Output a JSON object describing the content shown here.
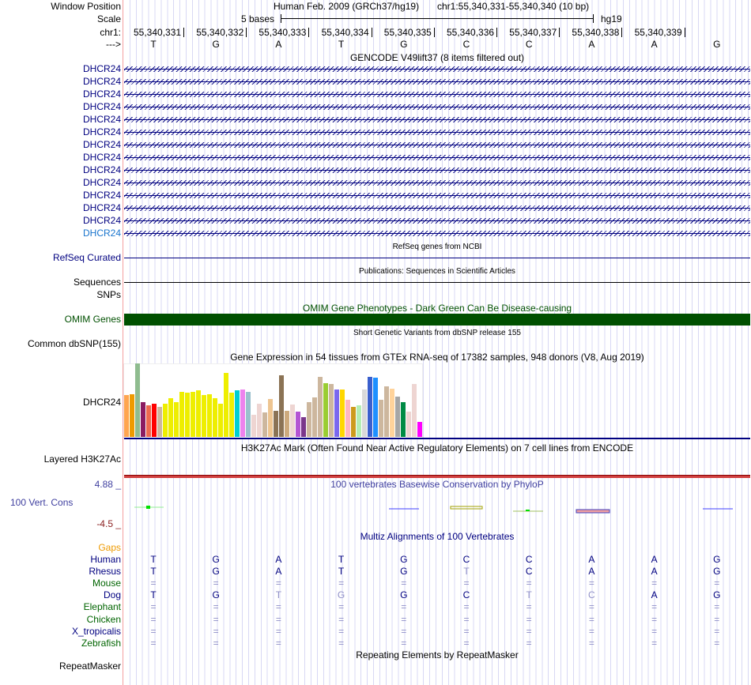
{
  "header": {
    "window_position_label": "Window Position",
    "scale_label": "Scale",
    "chrom_label": "chr1:",
    "strand_label": "--->",
    "assembly": "Human Feb. 2009 (GRCh37/hg19)",
    "position": "chr1:55,340,331-55,340,340 (10 bp)",
    "scale_text": "5 bases",
    "scale_db": "hg19",
    "coords": [
      "55,340,331",
      "55,340,332",
      "55,340,333",
      "55,340,334",
      "55,340,335",
      "55,340,336",
      "55,340,337",
      "55,340,338",
      "55,340,339"
    ],
    "bases": [
      "T",
      "G",
      "A",
      "T",
      "G",
      "C",
      "C",
      "A",
      "A",
      "G"
    ]
  },
  "gencode": {
    "title": "GENCODE V49lift37 (8 items filtered out)",
    "genes": [
      "DHCR24",
      "DHCR24",
      "DHCR24",
      "DHCR24",
      "DHCR24",
      "DHCR24",
      "DHCR24",
      "DHCR24",
      "DHCR24",
      "DHCR24",
      "DHCR24",
      "DHCR24",
      "DHCR24",
      "DHCR24"
    ]
  },
  "refseq": {
    "title": "RefSeq genes from NCBI",
    "label": "RefSeq Curated"
  },
  "pubs": {
    "title": "Publications: Sequences in Scientific Articles",
    "label": "Sequences"
  },
  "snps": {
    "label": "SNPs"
  },
  "omim": {
    "title": "OMIM Gene Phenotypes - Dark Green Can Be Disease-causing",
    "label": "OMIM Genes",
    "color": "#005000"
  },
  "dbsnp": {
    "title": "Short Genetic Variants from dbSNP release 155",
    "label": "Common dbSNP(155)"
  },
  "gtex": {
    "title": "Gene Expression in 54 tissues from GTEx RNA-seq of 17382 samples, 948 donors (V8, Aug 2019)",
    "label": "DHCR24",
    "values": [
      0.57,
      0.58,
      1.0,
      0.47,
      0.43,
      0.45,
      0.41,
      0.45,
      0.53,
      0.47,
      0.61,
      0.6,
      0.61,
      0.63,
      0.57,
      0.58,
      0.53,
      0.45,
      0.87,
      0.6,
      0.63,
      0.64,
      0.61,
      0.3,
      0.45,
      0.33,
      0.52,
      0.36,
      0.84,
      0.35,
      0.44,
      0.34,
      0.27,
      0.47,
      0.54,
      0.82,
      0.73,
      0.72,
      0.65,
      0.65,
      0.5,
      0.41,
      0.43,
      0.65,
      0.82,
      0.81,
      0.5,
      0.69,
      0.66,
      0.55,
      0.47,
      0.34,
      0.72,
      0.2
    ],
    "colors": [
      "#ffa54f",
      "#ee9a00",
      "#8fbc8f",
      "#8b1c62",
      "#ee6a50",
      "#ff0000",
      "#cdb79e",
      "#eeee00",
      "#eeee00",
      "#eeee00",
      "#eeee00",
      "#eeee00",
      "#eeee00",
      "#eeee00",
      "#eeee00",
      "#eeee00",
      "#eeee00",
      "#eeee00",
      "#eeee00",
      "#eeee00",
      "#00ced1",
      "#ee82ee",
      "#9ac0cd",
      "#eed5d2",
      "#eed5d2",
      "#cdb79e",
      "#eec591",
      "#8b7355",
      "#8b7355",
      "#cdaa7d",
      "#eed5d2",
      "#b454d3",
      "#7a378b",
      "#cdb79e",
      "#cdb79e",
      "#cdb79e",
      "#9acd32",
      "#cdb79e",
      "#7a67ee",
      "#ffd700",
      "#ffb6c1",
      "#cd9b1d",
      "#b4eeb4",
      "#d9d9d9",
      "#3a5fcd",
      "#1e90ff",
      "#cdb79e",
      "#cdb79e",
      "#ffd39b",
      "#a6a6a6",
      "#008b45",
      "#eed5d2",
      "#eed5d2",
      "#ff00ff"
    ]
  },
  "h3k27ac": {
    "title": "H3K27Ac Mark (Often Found Near Active Regulatory Elements) on 7 cell lines from ENCODE",
    "label": "Layered H3K27Ac"
  },
  "phylop": {
    "title": "100 vertebrates Basewise Conservation by PhyloP",
    "label": "100 Vert. Cons",
    "max": "4.88 _",
    "min": "-4.5 _"
  },
  "multiz": {
    "title": "Multiz Alignments of 100 Vertebrates",
    "gaps_label": "Gaps",
    "species": [
      {
        "name": "Human",
        "color": "#000080",
        "bases": [
          "T",
          "G",
          "A",
          "T",
          "G",
          "C",
          "C",
          "A",
          "A",
          "G"
        ],
        "faint": []
      },
      {
        "name": "Rhesus",
        "color": "#000080",
        "bases": [
          "T",
          "G",
          "A",
          "T",
          "G",
          "T",
          "C",
          "A",
          "A",
          "G"
        ],
        "faint": [
          5
        ]
      },
      {
        "name": "Mouse",
        "color": "#006400",
        "bases": [
          "=",
          "=",
          "=",
          "=",
          "=",
          "=",
          "=",
          "=",
          "=",
          "="
        ],
        "faint": [
          0,
          1,
          2,
          3,
          4,
          5,
          6,
          7,
          8,
          9
        ]
      },
      {
        "name": "Dog",
        "color": "#000080",
        "bases": [
          "T",
          "G",
          "T",
          "G",
          "G",
          "C",
          "T",
          "C",
          "A",
          "G"
        ],
        "faint": [
          2,
          3,
          6,
          7
        ]
      },
      {
        "name": "Elephant",
        "color": "#006400",
        "bases": [
          "=",
          "=",
          "=",
          "=",
          "=",
          "=",
          "=",
          "=",
          "=",
          "="
        ],
        "faint": [
          0,
          1,
          2,
          3,
          4,
          5,
          6,
          7,
          8,
          9
        ]
      },
      {
        "name": "Chicken",
        "color": "#006400",
        "bases": [
          "=",
          "=",
          "=",
          "=",
          "=",
          "=",
          "=",
          "=",
          "=",
          "="
        ],
        "faint": [
          0,
          1,
          2,
          3,
          4,
          5,
          6,
          7,
          8,
          9
        ]
      },
      {
        "name": "X_tropicalis",
        "color": "#000080",
        "bases": [
          "=",
          "=",
          "=",
          "=",
          "=",
          "=",
          "=",
          "=",
          "=",
          "="
        ],
        "faint": [
          0,
          1,
          2,
          3,
          4,
          5,
          6,
          7,
          8,
          9
        ]
      },
      {
        "name": "Zebrafish",
        "color": "#006400",
        "bases": [
          "=",
          "=",
          "=",
          "=",
          "=",
          "=",
          "=",
          "=",
          "=",
          "="
        ],
        "faint": [
          0,
          1,
          2,
          3,
          4,
          5,
          6,
          7,
          8,
          9
        ]
      }
    ]
  },
  "repeatmasker": {
    "title": "Repeating Elements by RepeatMasker",
    "label": "RepeatMasker"
  }
}
